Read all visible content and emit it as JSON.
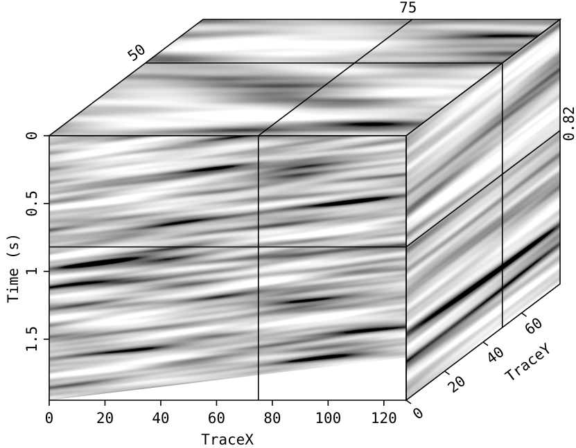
{
  "chart_data": {
    "type": "cube",
    "xlabel": "TraceX",
    "ylabel": "Time (s)",
    "zlabel": "TraceY",
    "xlim": [
      0,
      128
    ],
    "xticks": [
      0,
      20,
      40,
      60,
      80,
      100,
      120
    ],
    "ylim": [
      0,
      1.95
    ],
    "yticks": [
      0,
      0.5,
      1,
      1.5
    ],
    "zlim": [
      0,
      80
    ],
    "zticks": [
      0,
      20,
      40,
      60
    ],
    "slices": {
      "x": 75,
      "y": 0.82,
      "z": 50
    }
  }
}
